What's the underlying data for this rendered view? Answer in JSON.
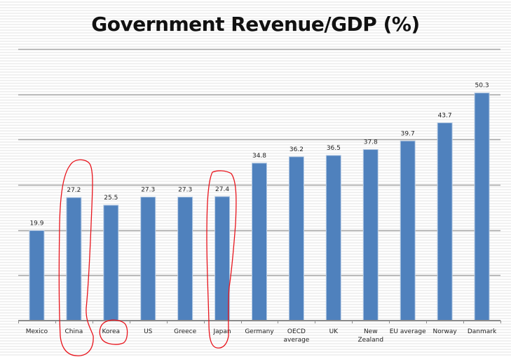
{
  "chart_data": {
    "type": "bar",
    "title": "Government Revenue/GDP (%)",
    "xlabel": "",
    "ylabel": "",
    "ylim": [
      0,
      60
    ],
    "y_gridlines": [
      0,
      10,
      20,
      30,
      40,
      50,
      60
    ],
    "y_tick_labels_shown": false,
    "grid": true,
    "legend": "none",
    "categories": [
      "Mexico",
      "China",
      "Korea",
      "US",
      "Greece",
      "Japan",
      "Germany",
      "OECD average",
      "UK",
      "New Zealand",
      "EU average",
      "Norway",
      "Danmark"
    ],
    "category_label_lines": [
      [
        "Mexico"
      ],
      [
        "China"
      ],
      [
        "Korea"
      ],
      [
        "US"
      ],
      [
        "Greece"
      ],
      [
        "Japan"
      ],
      [
        "Germany"
      ],
      [
        "OECD",
        "average"
      ],
      [
        "UK"
      ],
      [
        "New",
        "Zealand"
      ],
      [
        "EU average"
      ],
      [
        "Norway"
      ],
      [
        "Danmark"
      ]
    ],
    "values": [
      19.9,
      27.2,
      25.5,
      27.3,
      27.3,
      27.4,
      34.8,
      36.2,
      36.5,
      37.8,
      39.7,
      43.7,
      50.3
    ],
    "data_labels": [
      "19.9",
      "27.2",
      "25.5",
      "27.3",
      "27.3",
      "27.4",
      "34.8",
      "36.2",
      "36.5",
      "37.8",
      "39.7",
      "43.7",
      "50.3"
    ],
    "bar_color": "#4f81bd",
    "annotations": [
      {
        "type": "hand-drawn-circle",
        "color": "#e8141c",
        "highlights": "China"
      },
      {
        "type": "hand-drawn-circle",
        "color": "#e8141c",
        "highlights": "Korea"
      },
      {
        "type": "hand-drawn-circle",
        "color": "#e8141c",
        "highlights": "Japan"
      }
    ]
  }
}
